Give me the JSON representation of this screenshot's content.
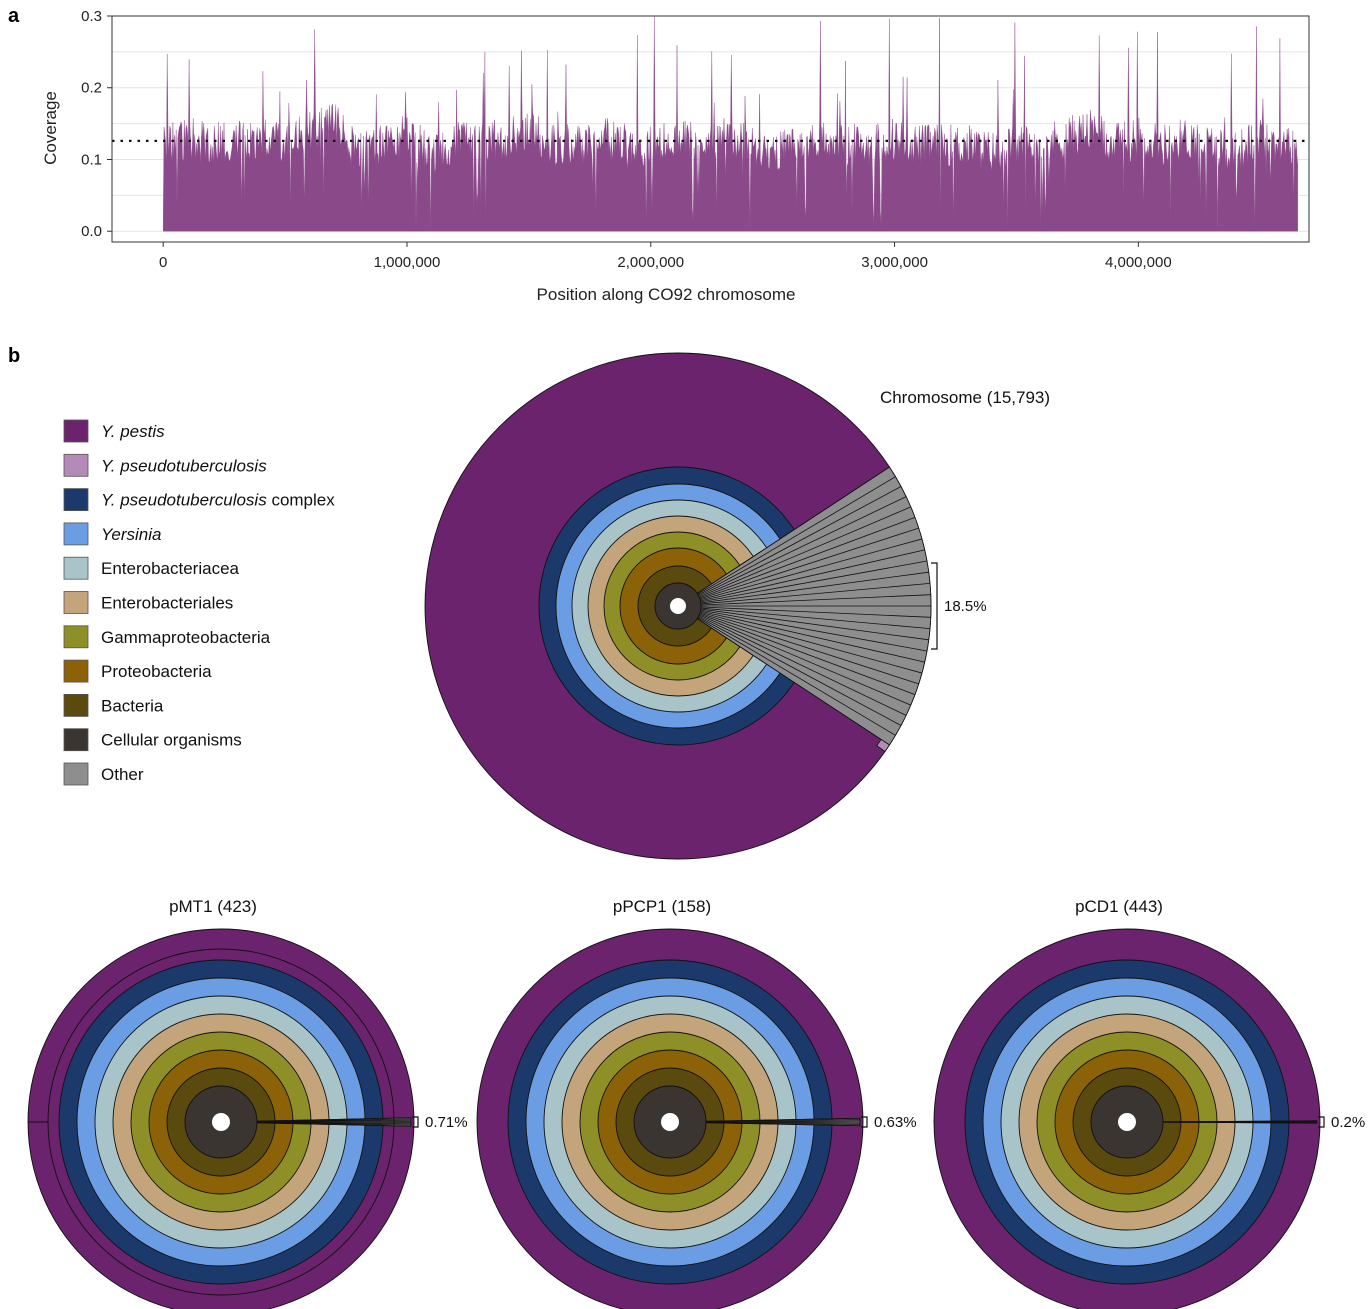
{
  "panel_labels": {
    "a": "a",
    "b": "b"
  },
  "legend": [
    {
      "label": "Y. pestis",
      "italic_part": "Y. pestis",
      "plain_part": "",
      "color": "#6a236c"
    },
    {
      "label": "Y. pseudotuberculosis",
      "italic_part": "Y. pseudotuberculosis",
      "plain_part": "",
      "color": "#b48ab8"
    },
    {
      "label": "Y. pseudotuberculosis complex",
      "italic_part": "Y. pseudotuberculosis",
      "plain_part": " complex",
      "color": "#1b3a6b"
    },
    {
      "label": "Yersinia",
      "italic_part": "Yersinia",
      "plain_part": "",
      "color": "#6a9de3"
    },
    {
      "label": "Enterobacteriacea",
      "italic_part": "",
      "plain_part": "Enterobacteriacea",
      "color": "#a8c4c8"
    },
    {
      "label": "Enterobacteriales",
      "italic_part": "",
      "plain_part": "Enterobacteriales",
      "color": "#c4a47a"
    },
    {
      "label": "Gammaproteobacteria",
      "italic_part": "",
      "plain_part": "Gammaproteobacteria",
      "color": "#8e9027"
    },
    {
      "label": "Proteobacteria",
      "italic_part": "",
      "plain_part": "Proteobacteria",
      "color": "#8c6209"
    },
    {
      "label": "Bacteria",
      "italic_part": "",
      "plain_part": "Bacteria",
      "color": "#5b4a0e"
    },
    {
      "label": "Cellular organisms",
      "italic_part": "",
      "plain_part": "Cellular organisms",
      "color": "#3a3530"
    },
    {
      "label": "Other",
      "italic_part": "",
      "plain_part": "Other",
      "color": "#8e8e8e"
    }
  ],
  "chart_data": [
    {
      "type": "area",
      "panel": "a",
      "title": "",
      "xlabel": "Position along CO92 chromosome",
      "ylabel": "Coverage",
      "xlim": [
        -210000,
        4700000
      ],
      "ylim": [
        -0.015,
        0.3
      ],
      "x_ticks": [
        0,
        1000000,
        2000000,
        3000000,
        4000000
      ],
      "x_tick_labels": [
        "0",
        "1,000,000",
        "2,000,000",
        "3,000,000",
        "4,000,000"
      ],
      "y_ticks": [
        0.0,
        0.1,
        0.2,
        0.3
      ],
      "y_tick_labels": [
        "0.0",
        "0.1",
        "0.2",
        "0.3"
      ],
      "grid": true,
      "fill_color": "#8a4a8a",
      "mean_line": {
        "y": 0.126,
        "style": "dotted"
      },
      "data_extent": [
        0,
        4653728
      ],
      "series": [
        {
          "x": [
            0,
            100000,
            200000,
            300000,
            400000,
            500000,
            600000,
            700000,
            800000,
            900000,
            1000000,
            1100000,
            1200000,
            1300000,
            1400000,
            1500000,
            1600000,
            1700000,
            1800000,
            1900000,
            2000000,
            2100000,
            2200000,
            2300000,
            2400000,
            2500000,
            2600000,
            2700000,
            2800000,
            2900000,
            3000000,
            3100000,
            3200000,
            3300000,
            3400000,
            3500000,
            3600000,
            3700000,
            3800000,
            3900000,
            4000000,
            4100000,
            4200000,
            4300000,
            4400000,
            4500000,
            4600000
          ],
          "values": [
            0.12,
            0.13,
            0.12,
            0.13,
            0.13,
            0.12,
            0.14,
            0.15,
            0.11,
            0.12,
            0.14,
            0.1,
            0.13,
            0.12,
            0.13,
            0.14,
            0.12,
            0.12,
            0.13,
            0.12,
            0.12,
            0.13,
            0.12,
            0.13,
            0.12,
            0.11,
            0.12,
            0.13,
            0.12,
            0.12,
            0.13,
            0.12,
            0.12,
            0.12,
            0.11,
            0.12,
            0.12,
            0.13,
            0.14,
            0.12,
            0.13,
            0.12,
            0.13,
            0.12,
            0.11,
            0.13,
            0.12
          ]
        }
      ]
    },
    {
      "type": "pie",
      "panel": "b",
      "title": "Chromosome (15,793)",
      "annotation": "18.5%",
      "rings": [
        "Cellular organisms",
        "Bacteria",
        "Proteobacteria",
        "Gammaproteobacteria",
        "Enterobacteriales",
        "Enterobacteriacea",
        "Yersinia",
        "Y. pseudotuberculosis complex",
        "Y. pestis"
      ],
      "other_fraction": 0.185,
      "y_pseudotuberculosis_fraction": 0.005
    },
    {
      "type": "pie",
      "panel": "b",
      "title": "pMT1 (423)",
      "annotation": "0.71%",
      "other_fraction": 0.0071
    },
    {
      "type": "pie",
      "panel": "b",
      "title": "pPCP1 (158)",
      "annotation": "0.63%",
      "other_fraction": 0.0063
    },
    {
      "type": "pie",
      "panel": "b",
      "title": "pCD1 (443)",
      "annotation": "0.2%",
      "other_fraction": 0.002
    }
  ]
}
